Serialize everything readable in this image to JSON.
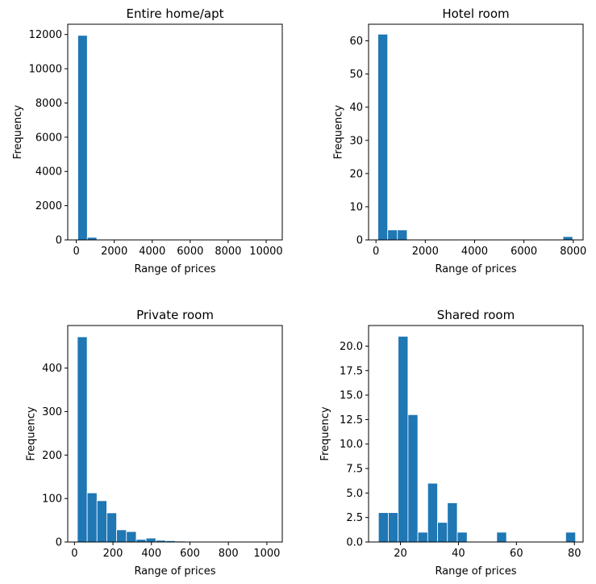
{
  "chart_data": [
    {
      "type": "bar",
      "title": "Entire home/apt",
      "xlabel": "Range of prices",
      "ylabel": "Frequency",
      "xlim": [
        -450,
        10850
      ],
      "ylim": [
        0,
        12600
      ],
      "xticks": [
        0,
        2000,
        4000,
        6000,
        8000,
        10000
      ],
      "yticks": [
        0,
        2000,
        4000,
        6000,
        8000,
        10000,
        12000
      ],
      "bins": [
        {
          "x0": 80,
          "x1": 580,
          "count": 11950
        },
        {
          "x0": 580,
          "x1": 1080,
          "count": 150
        },
        {
          "x0": 1080,
          "x1": 1580,
          "count": 20
        },
        {
          "x0": 1580,
          "x1": 2080,
          "count": 5
        },
        {
          "x0": 2580,
          "x1": 3080,
          "count": 3
        },
        {
          "x0": 4080,
          "x1": 4580,
          "count": 2
        },
        {
          "x0": 9580,
          "x1": 10080,
          "count": 1
        }
      ],
      "color": "#1f77b4"
    },
    {
      "type": "bar",
      "title": "Hotel room",
      "xlabel": "Range of prices",
      "ylabel": "Frequency",
      "xlim": [
        -300,
        8400
      ],
      "ylim": [
        0,
        65
      ],
      "xticks": [
        0,
        2000,
        4000,
        6000,
        8000
      ],
      "yticks": [
        0,
        10,
        20,
        30,
        40,
        50,
        60
      ],
      "bins": [
        {
          "x0": 80,
          "x1": 475,
          "count": 62
        },
        {
          "x0": 475,
          "x1": 870,
          "count": 3
        },
        {
          "x0": 870,
          "x1": 1265,
          "count": 3
        },
        {
          "x0": 7585,
          "x1": 7980,
          "count": 1
        }
      ],
      "color": "#1f77b4"
    },
    {
      "type": "bar",
      "title": "Private room",
      "xlabel": "Range of prices",
      "ylabel": "Frequency",
      "xlim": [
        -35,
        1080
      ],
      "ylim": [
        0,
        498
      ],
      "xticks": [
        0,
        200,
        400,
        600,
        800,
        1000
      ],
      "yticks": [
        0,
        100,
        200,
        300,
        400
      ],
      "bins": [
        {
          "x0": 15,
          "x1": 66,
          "count": 472
        },
        {
          "x0": 66,
          "x1": 117,
          "count": 113
        },
        {
          "x0": 117,
          "x1": 168,
          "count": 95
        },
        {
          "x0": 168,
          "x1": 219,
          "count": 67
        },
        {
          "x0": 219,
          "x1": 270,
          "count": 28
        },
        {
          "x0": 270,
          "x1": 321,
          "count": 24
        },
        {
          "x0": 321,
          "x1": 372,
          "count": 6
        },
        {
          "x0": 372,
          "x1": 423,
          "count": 9
        },
        {
          "x0": 423,
          "x1": 474,
          "count": 4
        },
        {
          "x0": 474,
          "x1": 525,
          "count": 3
        },
        {
          "x0": 525,
          "x1": 576,
          "count": 2
        },
        {
          "x0": 627,
          "x1": 678,
          "count": 1
        },
        {
          "x0": 984,
          "x1": 1035,
          "count": 1
        }
      ],
      "color": "#1f77b4"
    },
    {
      "type": "bar",
      "title": "Shared room",
      "xlabel": "Range of prices",
      "ylabel": "Frequency",
      "xlim": [
        9.0,
        83.0
      ],
      "ylim": [
        0,
        22.1
      ],
      "xticks": [
        20,
        40,
        60,
        80
      ],
      "ytick_labels": [
        "0.0",
        "2.5",
        "5.0",
        "7.5",
        "10.0",
        "12.5",
        "15.0",
        "17.5",
        "20.0"
      ],
      "yticks": [
        0,
        2.5,
        5.0,
        7.5,
        10.0,
        12.5,
        15.0,
        17.5,
        20.0
      ],
      "bins": [
        {
          "x0": 12.4,
          "x1": 15.8,
          "count": 3
        },
        {
          "x0": 15.8,
          "x1": 19.2,
          "count": 3
        },
        {
          "x0": 19.2,
          "x1": 22.6,
          "count": 21
        },
        {
          "x0": 22.6,
          "x1": 26.0,
          "count": 13
        },
        {
          "x0": 26.0,
          "x1": 29.4,
          "count": 1
        },
        {
          "x0": 29.4,
          "x1": 32.8,
          "count": 6
        },
        {
          "x0": 32.8,
          "x1": 36.2,
          "count": 2
        },
        {
          "x0": 36.2,
          "x1": 39.6,
          "count": 4
        },
        {
          "x0": 39.6,
          "x1": 43.0,
          "count": 1
        },
        {
          "x0": 53.2,
          "x1": 56.6,
          "count": 1
        },
        {
          "x0": 77.0,
          "x1": 80.4,
          "count": 1
        }
      ],
      "color": "#1f77b4"
    }
  ]
}
